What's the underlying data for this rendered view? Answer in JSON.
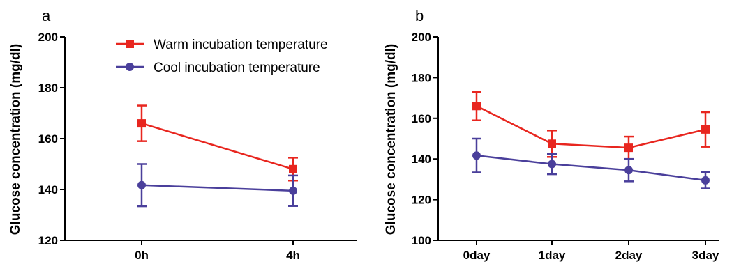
{
  "colors": {
    "warm": "#e8261f",
    "cool": "#4a3f9b",
    "axis": "#000000"
  },
  "chart_data": [
    {
      "type": "line",
      "panel_label": "a",
      "ylabel": "Glucose concentration (mg/dl)",
      "xlabel": "",
      "categories": [
        "0h",
        "4h"
      ],
      "ylim": [
        120,
        200
      ],
      "yticks": [
        120,
        140,
        160,
        180,
        200
      ],
      "legend_placement": "top-left",
      "series": [
        {
          "name": "Warm incubation temperature",
          "marker": "square",
          "color": "#e8261f",
          "values": [
            166,
            148
          ],
          "err": [
            7,
            4.5
          ]
        },
        {
          "name": "Cool incubation temperature",
          "marker": "circle",
          "color": "#4a3f9b",
          "values": [
            141.7,
            139.5
          ],
          "err": [
            8.3,
            6
          ]
        }
      ]
    },
    {
      "type": "line",
      "panel_label": "b",
      "ylabel": "Glucose concentration (mg/dl)",
      "xlabel": "",
      "categories": [
        "0day",
        "1day",
        "2day",
        "3day"
      ],
      "ylim": [
        100,
        200
      ],
      "yticks": [
        100,
        120,
        140,
        160,
        180,
        200
      ],
      "series": [
        {
          "name": "Warm incubation temperature",
          "marker": "square",
          "color": "#e8261f",
          "values": [
            166,
            147.5,
            145.5,
            154.5
          ],
          "err": [
            7,
            6.5,
            5.5,
            8.5
          ]
        },
        {
          "name": "Cool incubation temperature",
          "marker": "circle",
          "color": "#4a3f9b",
          "values": [
            141.7,
            137.5,
            134.5,
            129.5
          ],
          "err": [
            8.3,
            5,
            5.5,
            4
          ]
        }
      ]
    }
  ]
}
